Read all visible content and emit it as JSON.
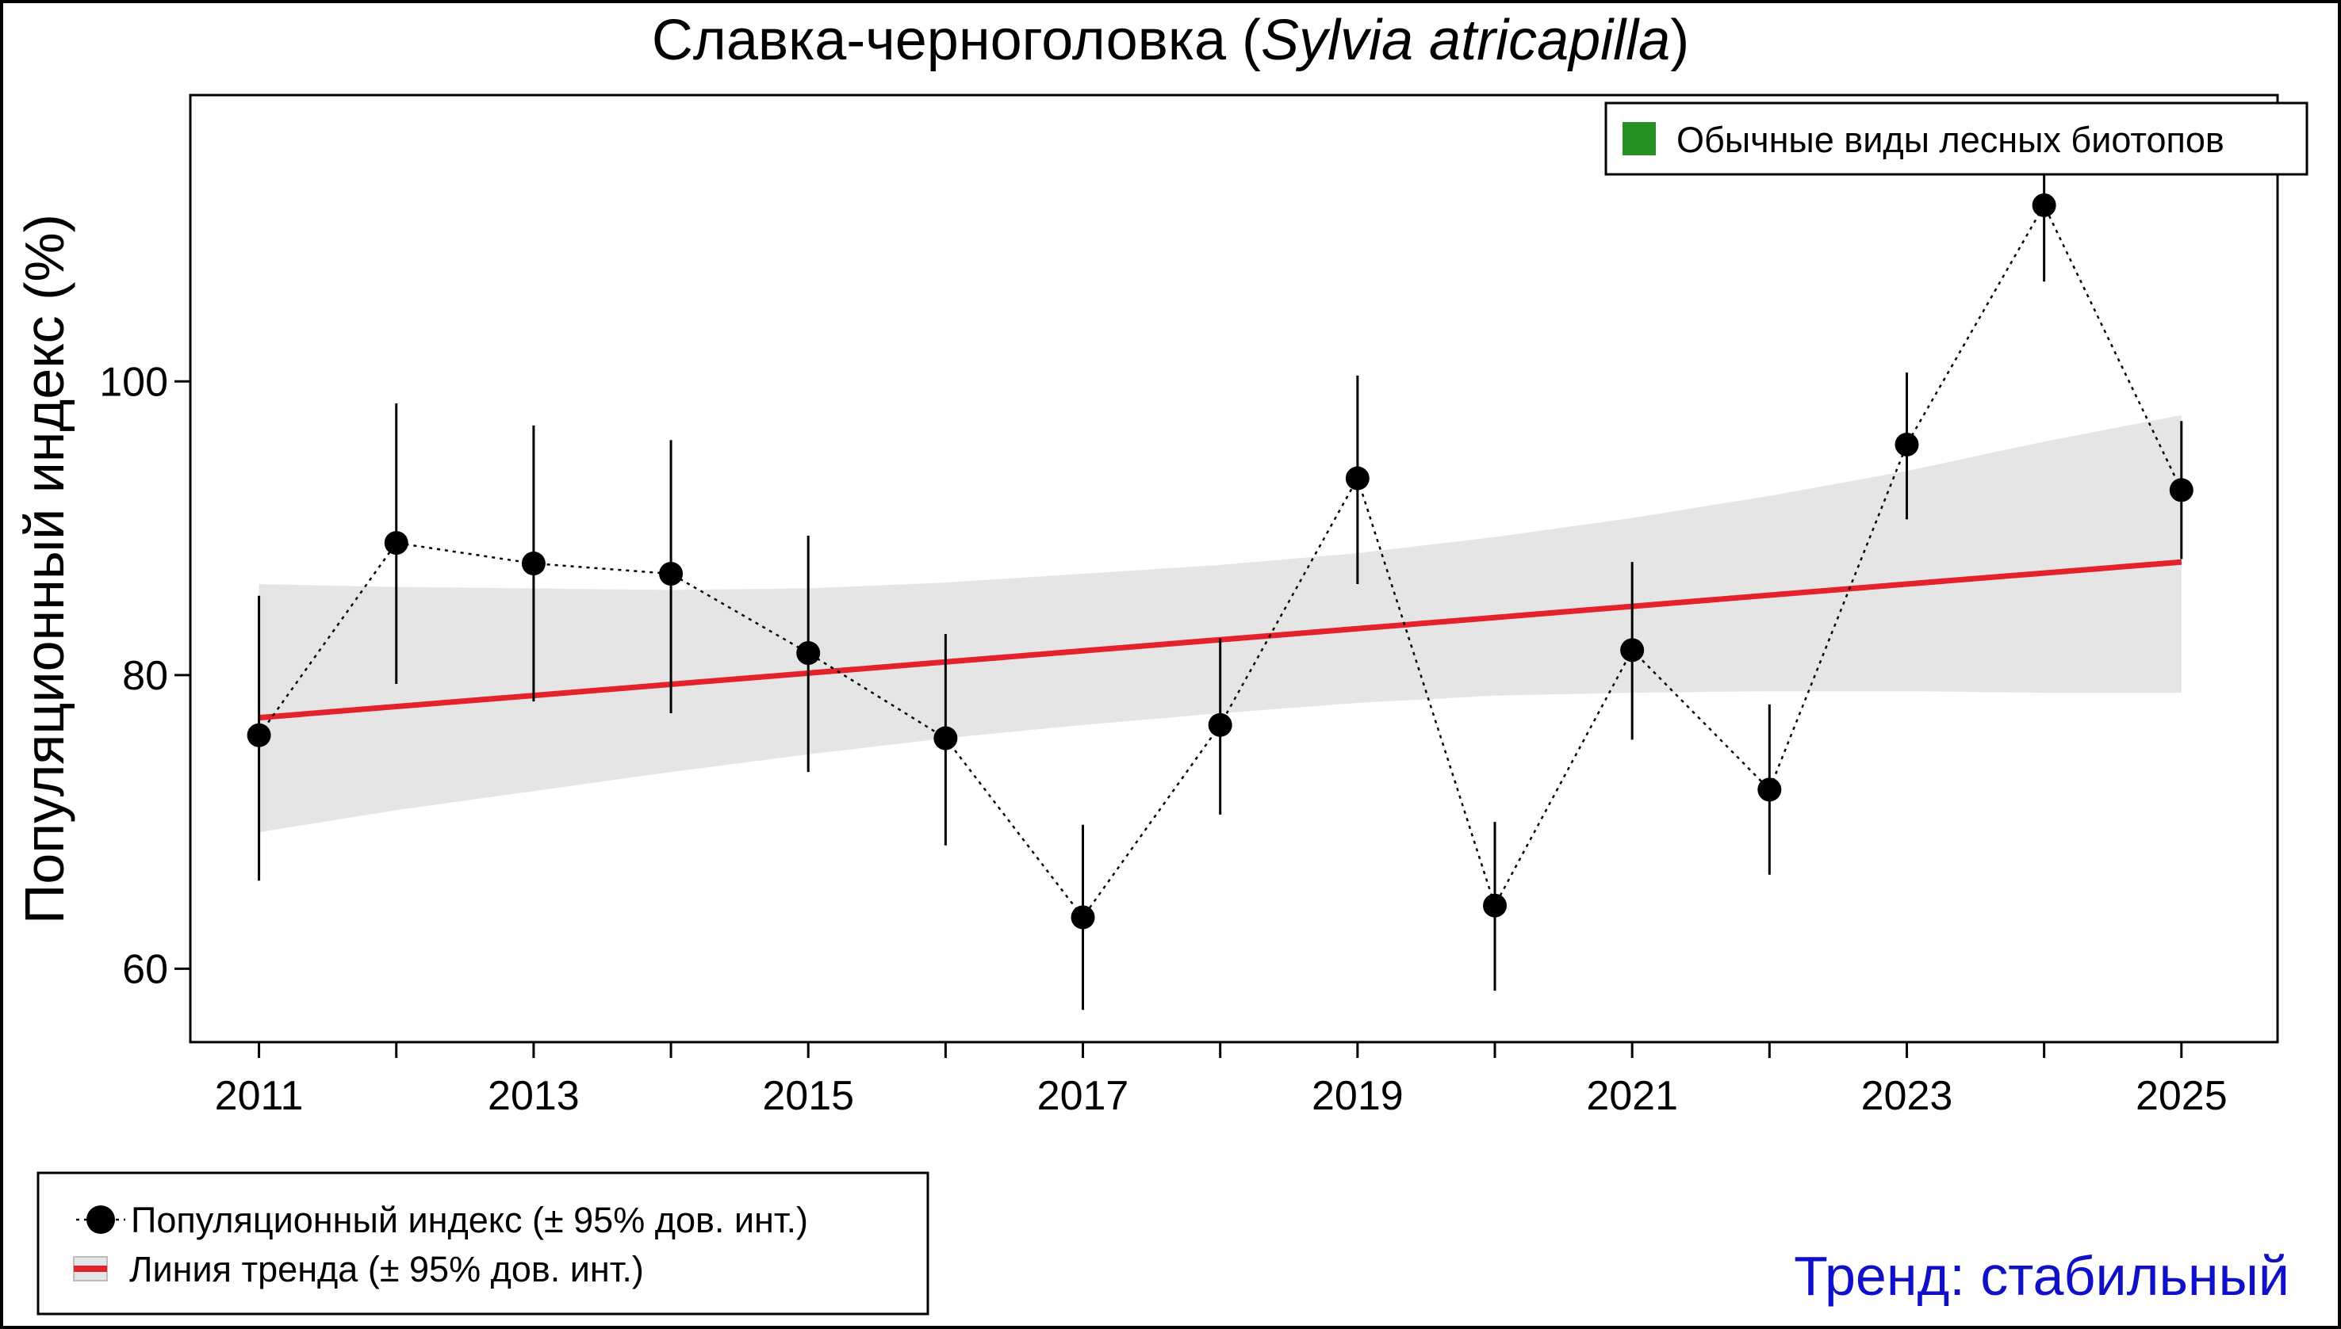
{
  "chart_data": {
    "type": "line",
    "title": {
      "main": "Славка-черноголовка (",
      "italic": "Sylvia atricapilla",
      "end": ")"
    },
    "xlabel": "",
    "ylabel": "Популяционный индекс (%)",
    "x": [
      2011,
      2012,
      2013,
      2014,
      2015,
      2016,
      2017,
      2018,
      2019,
      2020,
      2021,
      2022,
      2023,
      2024,
      2025
    ],
    "x_ticks": [
      2011,
      2013,
      2015,
      2017,
      2019,
      2021,
      2023,
      2025
    ],
    "y_ticks": [
      60,
      80,
      100
    ],
    "xlim": [
      2010.5,
      2025.7
    ],
    "ylim": [
      55,
      119.5
    ],
    "grid": false,
    "series": [
      {
        "name": "Популяционный индекс (± 95% дов. инт.)",
        "values": [
          75.9,
          89.0,
          87.6,
          86.9,
          81.5,
          75.7,
          63.5,
          76.6,
          93.4,
          64.3,
          81.7,
          72.2,
          95.7,
          112.0,
          92.6
        ],
        "lower": [
          66.0,
          79.4,
          78.2,
          77.4,
          73.4,
          68.4,
          57.2,
          70.5,
          86.2,
          58.5,
          75.6,
          66.4,
          90.6,
          106.8,
          87.9
        ],
        "upper": [
          85.4,
          98.5,
          97.0,
          96.0,
          89.5,
          82.8,
          69.8,
          82.5,
          100.4,
          70.0,
          87.7,
          78.0,
          100.6,
          117.0,
          97.3
        ]
      },
      {
        "name": "Линия тренда (± 95% дов. инт.)",
        "values": [
          77.1,
          77.86,
          78.61,
          79.37,
          80.13,
          80.89,
          81.65,
          82.41,
          83.16,
          83.92,
          84.68,
          85.44,
          86.2,
          86.95,
          87.7
        ],
        "lower": [
          69.3,
          70.8,
          72.1,
          73.4,
          74.6,
          75.7,
          76.6,
          77.4,
          78.1,
          78.6,
          78.8,
          78.9,
          78.9,
          78.8,
          78.8
        ],
        "upper": [
          86.2,
          86.0,
          85.9,
          85.8,
          85.9,
          86.3,
          86.9,
          87.5,
          88.3,
          89.4,
          90.7,
          92.2,
          93.9,
          95.9,
          97.7
        ]
      }
    ],
    "legend_placement": "bottom-left",
    "group_legend": {
      "label": "Обычные виды лесных биотопов",
      "color": "#259125",
      "placement": "top-right"
    },
    "trend_label": "Тренд: стабильный",
    "colors": {
      "points": "#000000",
      "trend_line": "#e3222b",
      "ci_band": "#e5e5e5",
      "trend_text": "#1010c8"
    }
  }
}
